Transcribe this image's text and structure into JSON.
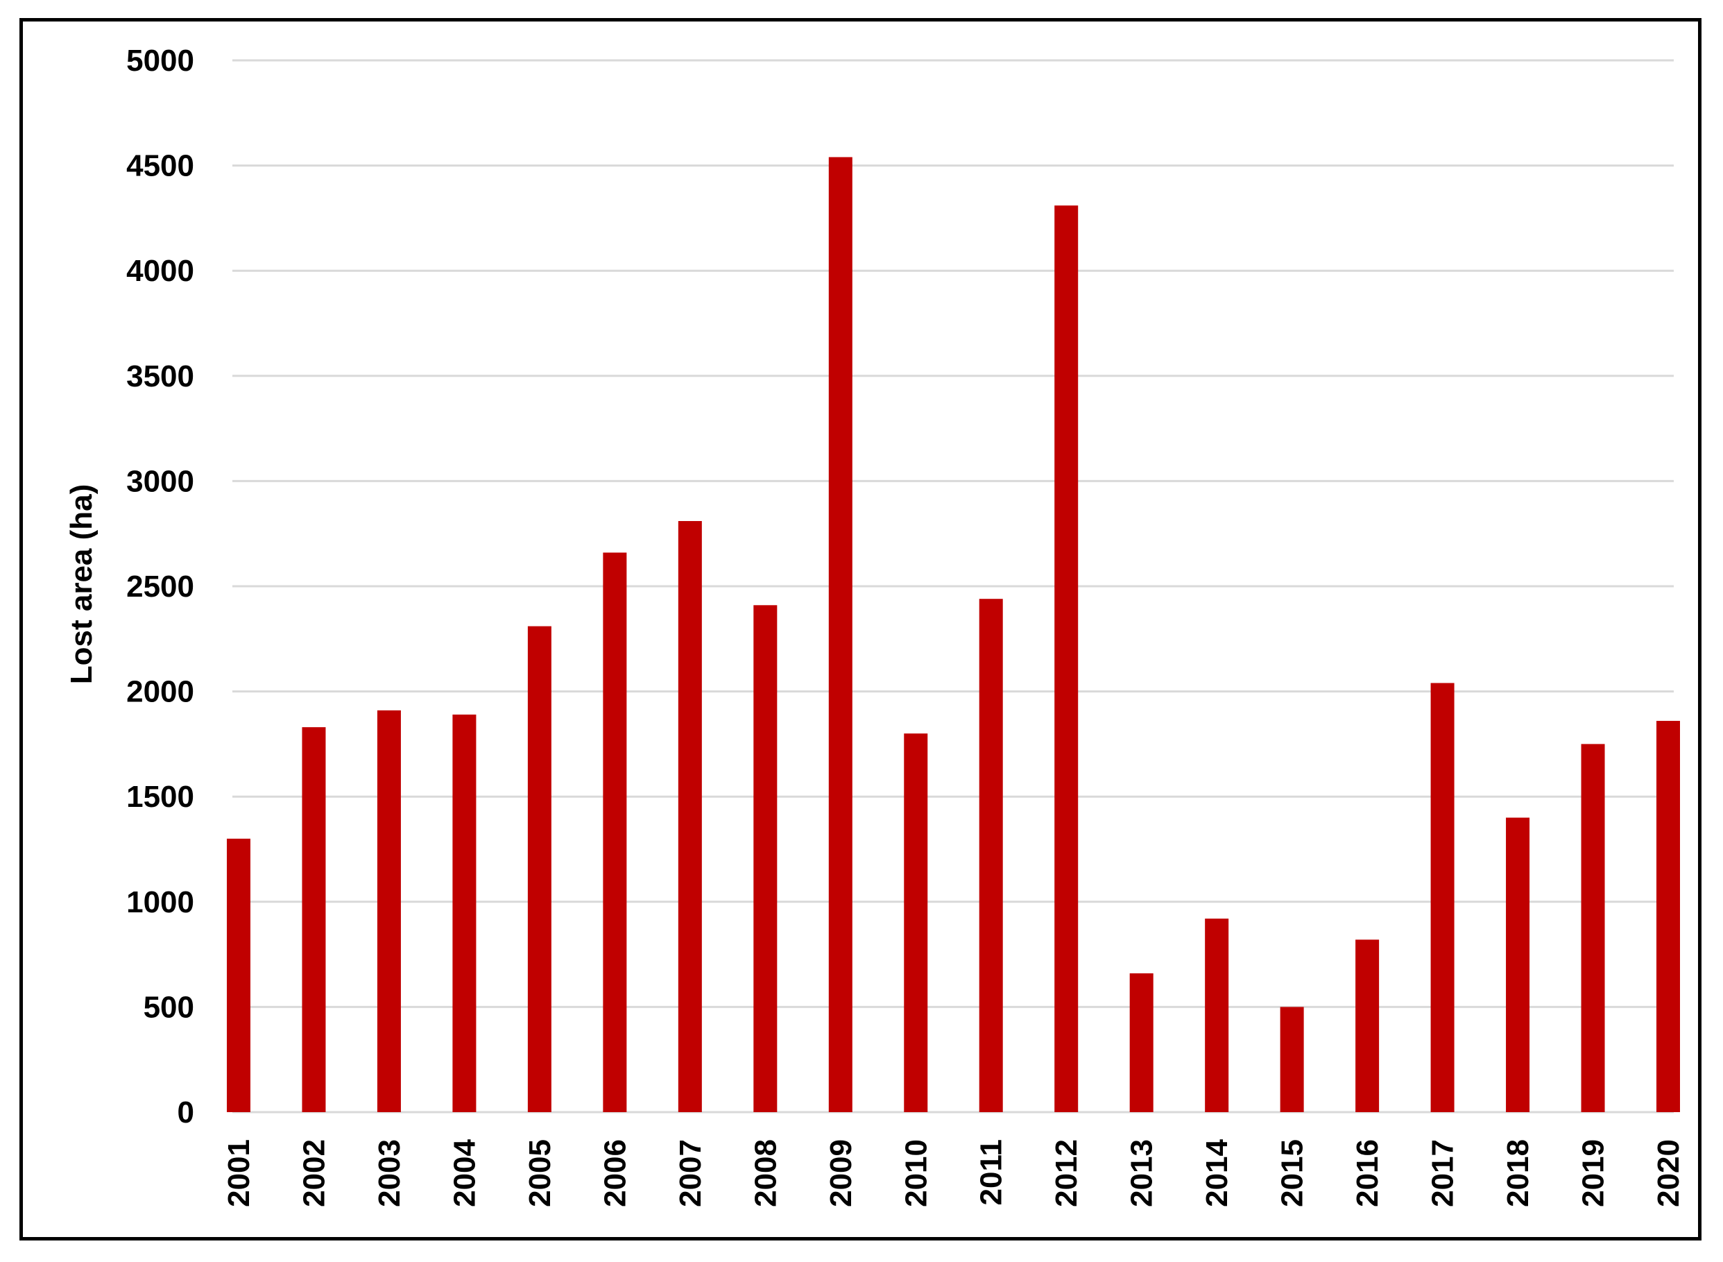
{
  "chart_data": {
    "type": "bar",
    "title": "",
    "xlabel": "",
    "ylabel": "Lost area (ha)",
    "ylim": [
      0,
      5000
    ],
    "yticks": [
      0,
      500,
      1000,
      1500,
      2000,
      2500,
      3000,
      3500,
      4000,
      4500,
      5000
    ],
    "grid": true,
    "legend": "none",
    "bar_color": "#c00000",
    "grid_color": "#d9d9d9",
    "categories": [
      "2001",
      "2002",
      "2003",
      "2004",
      "2005",
      "2006",
      "2007",
      "2008",
      "2009",
      "2010",
      "2011",
      "2012",
      "2013",
      "2014",
      "2015",
      "2016",
      "2017",
      "2018",
      "2019",
      "2020"
    ],
    "values": [
      1300,
      1830,
      1910,
      1890,
      2310,
      2660,
      2810,
      2410,
      4540,
      1800,
      2440,
      4310,
      660,
      920,
      500,
      820,
      2040,
      1400,
      1750,
      1860
    ]
  }
}
